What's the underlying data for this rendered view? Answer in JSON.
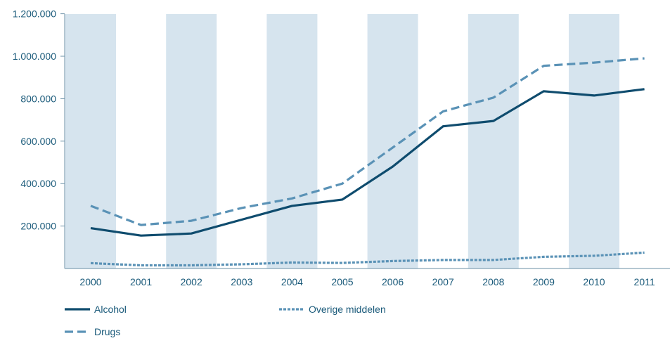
{
  "chart_data": {
    "type": "line",
    "title": "",
    "xlabel": "",
    "ylabel": "",
    "categories": [
      "2000",
      "2001",
      "2002",
      "2003",
      "2004",
      "2005",
      "2006",
      "2007",
      "2008",
      "2009",
      "2010",
      "2011"
    ],
    "y_ticks": [
      200000,
      400000,
      600000,
      800000,
      1000000,
      1200000
    ],
    "y_tick_labels": [
      "200.000",
      "400.000",
      "600.000",
      "800.000",
      "1.000.000",
      "1.200.000"
    ],
    "ylim": [
      0,
      1200000
    ],
    "grid": false,
    "alternating_column_bands": true,
    "legend_position": "bottom-left",
    "colors": {
      "band": "#d6e4ee",
      "axis": "#6a8fa6",
      "text": "#1a5a7a",
      "alcohol": "#0f4c6e",
      "drugs": "#5a92b6",
      "overige": "#5a92b6"
    },
    "series": [
      {
        "name": "Alcohol",
        "style": "solid",
        "values": [
          190000,
          155000,
          165000,
          230000,
          295000,
          325000,
          480000,
          670000,
          695000,
          835000,
          815000,
          845000
        ]
      },
      {
        "name": "Drugs",
        "style": "dashed",
        "values": [
          295000,
          205000,
          225000,
          285000,
          330000,
          400000,
          570000,
          740000,
          805000,
          955000,
          970000,
          990000
        ]
      },
      {
        "name": "Overige middelen",
        "style": "dotted",
        "values": [
          25000,
          15000,
          15000,
          20000,
          28000,
          26000,
          35000,
          40000,
          40000,
          55000,
          60000,
          75000
        ]
      }
    ]
  }
}
